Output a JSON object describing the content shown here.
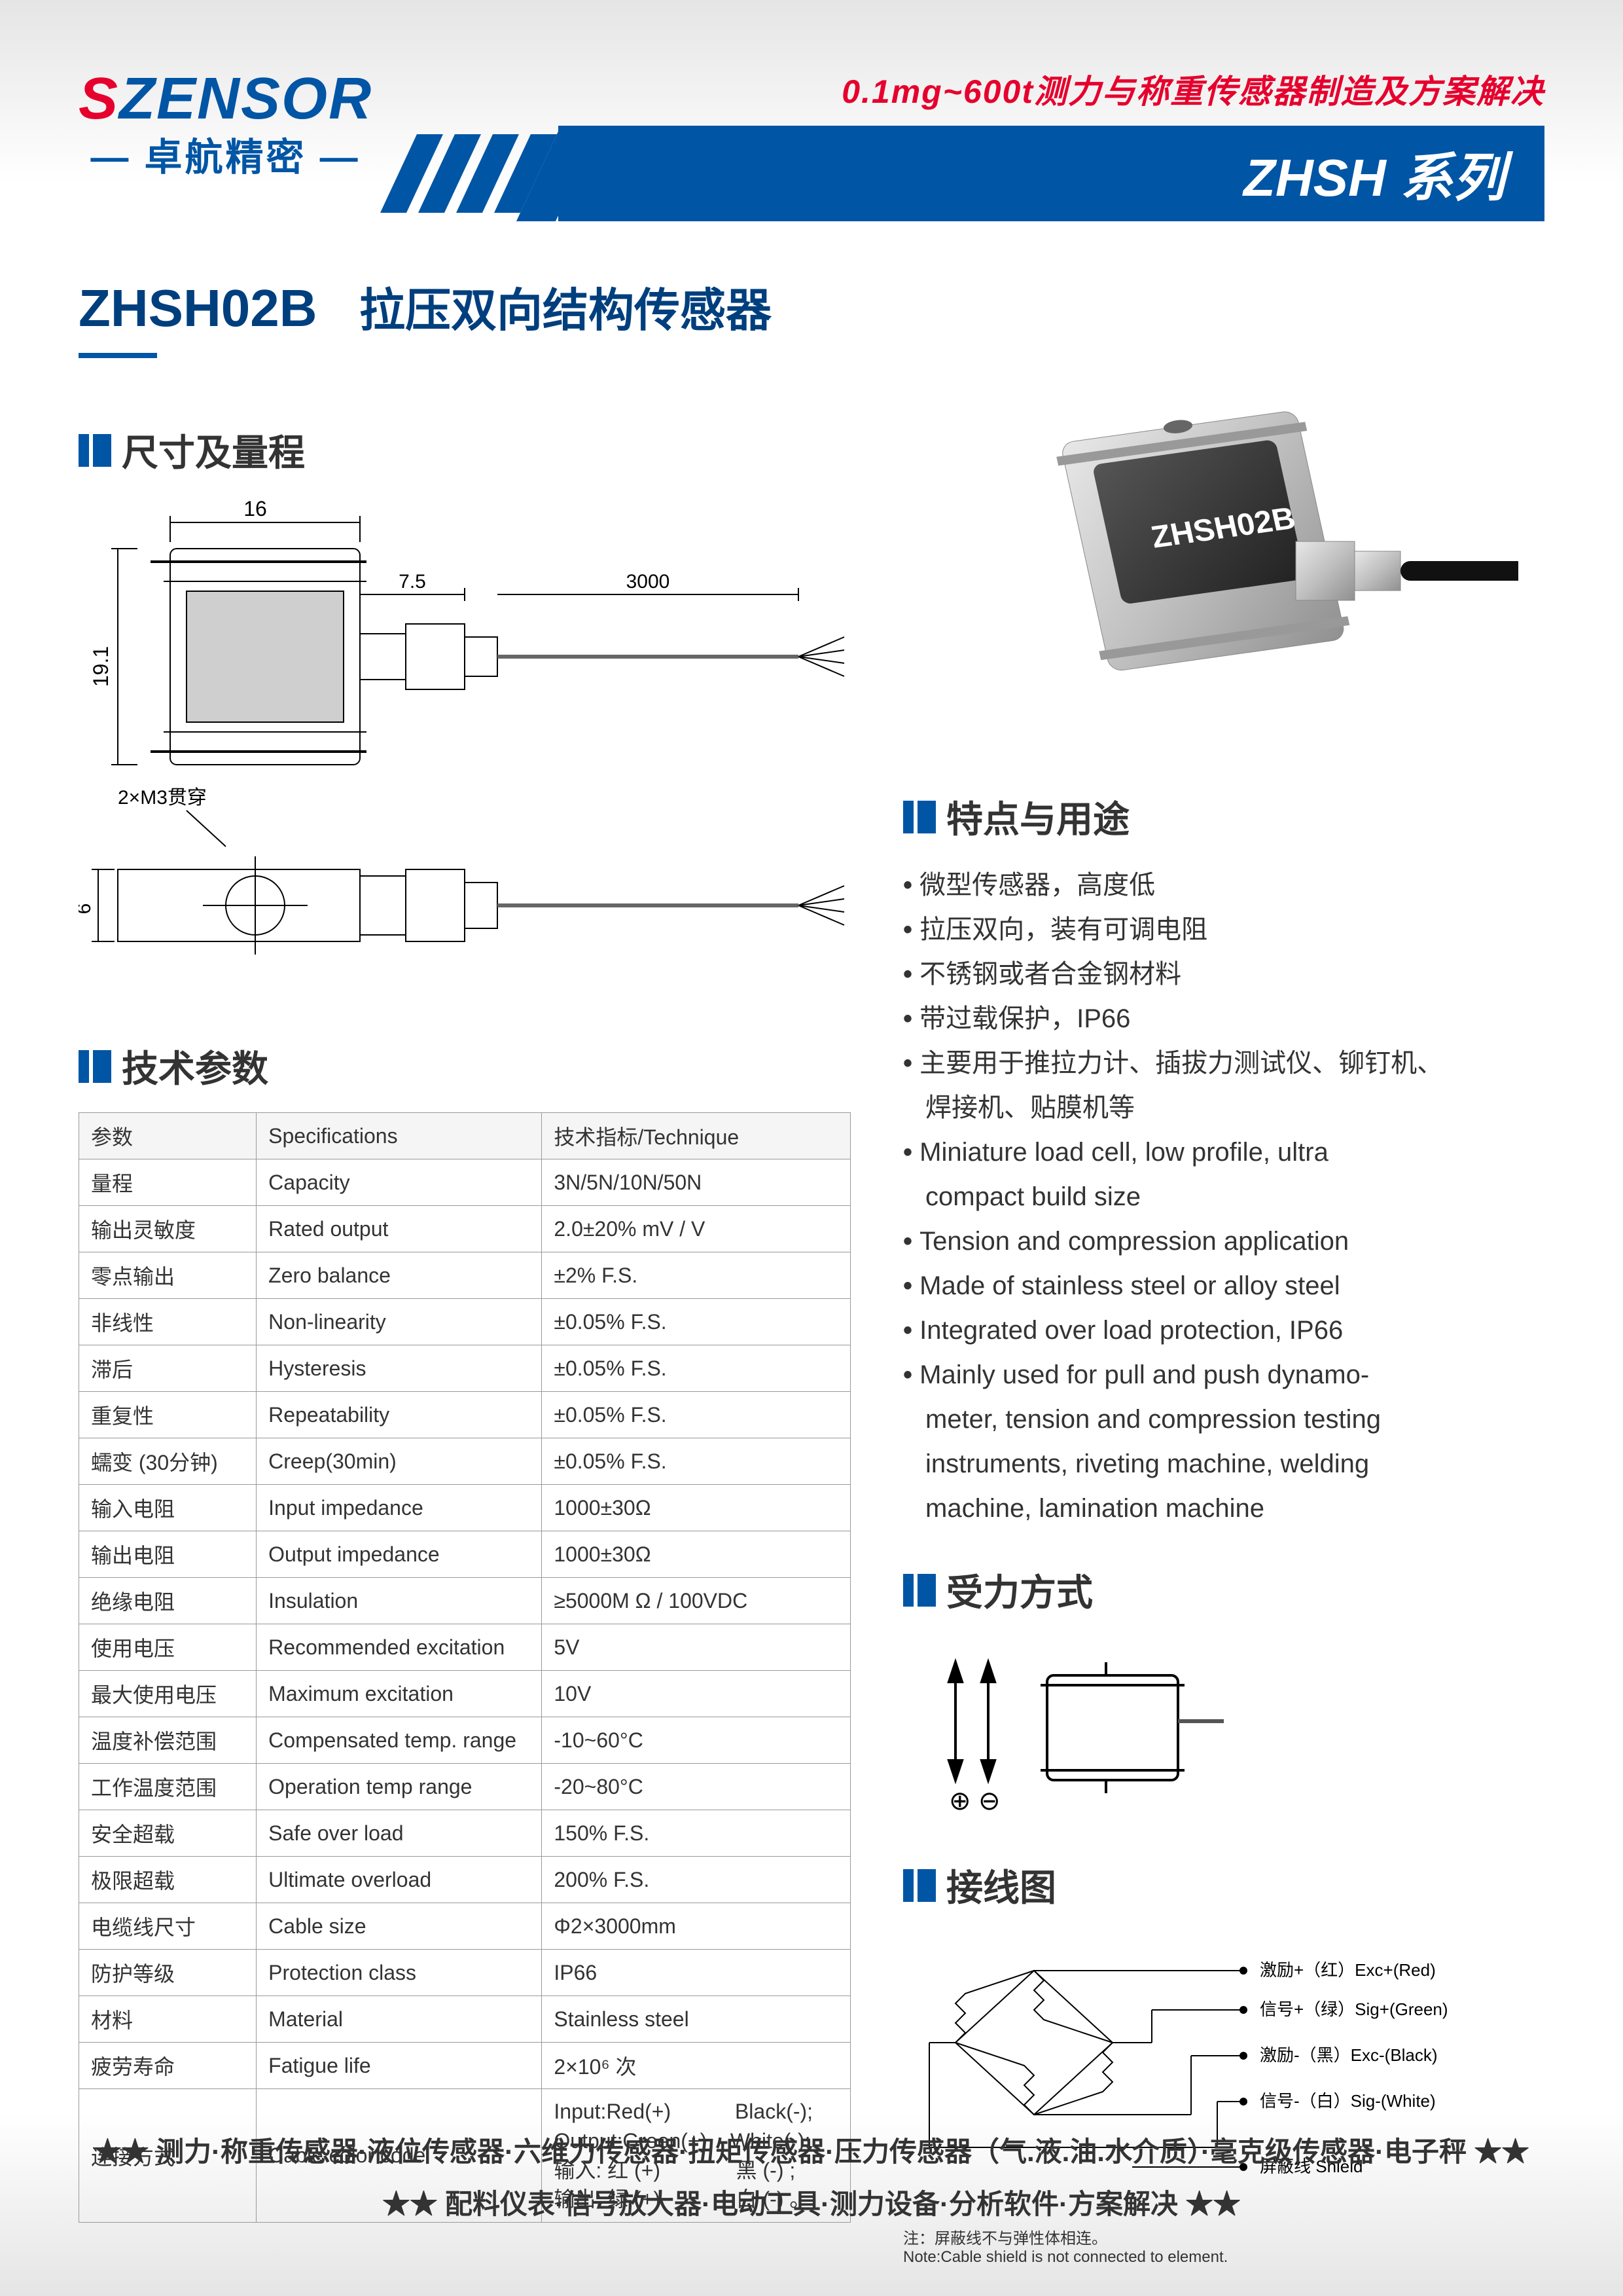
{
  "header": {
    "logo_s": "S",
    "logo_rest": "ZENSOR",
    "logo_sub": "— 卓航精密 —",
    "tagline": "0.1mg~600t测力与称重传感器制造及方案解决",
    "series": "ZHSH 系列"
  },
  "product": {
    "model": "ZHSH02B",
    "name": "拉压双向结构传感器"
  },
  "sections": {
    "dims": "尺寸及量程",
    "specs": "技术参数",
    "features": "特点与用途",
    "force": "受力方式",
    "wiring": "接线图"
  },
  "dims": {
    "w": "16",
    "h": "19.1",
    "ext": "7.5",
    "cable": "3000",
    "hole": "2×M3贯穿",
    "side_h": "6"
  },
  "spec_table": {
    "header": [
      "参数",
      "Specifications",
      "技术指标/Technique"
    ],
    "rows": [
      [
        "量程",
        "Capacity",
        "3N/5N/10N/50N"
      ],
      [
        "输出灵敏度",
        "Rated output",
        "2.0±20%  mV / V"
      ],
      [
        "零点输出",
        "Zero balance",
        "±2% F.S."
      ],
      [
        "非线性",
        "Non-linearity",
        "±0.05% F.S."
      ],
      [
        "滞后",
        "Hysteresis",
        "±0.05% F.S."
      ],
      [
        "重复性",
        "Repeatability",
        "±0.05% F.S."
      ],
      [
        "蠕变 (30分钟)",
        "Creep(30min)",
        "±0.05% F.S."
      ],
      [
        "输入电阻",
        "Input impedance",
        "1000±30Ω"
      ],
      [
        "输出电阻",
        "Output impedance",
        "1000±30Ω"
      ],
      [
        "绝缘电阻",
        "Insulation",
        "≥5000M Ω / 100VDC"
      ],
      [
        "使用电压",
        "Recommended excitation",
        "5V"
      ],
      [
        "最大使用电压",
        "Maximum excitation",
        "10V"
      ],
      [
        "温度补偿范围",
        "Compensated temp. range",
        "-10~60°C"
      ],
      [
        "工作温度范围",
        "Operation temp range",
        "-20~80°C"
      ],
      [
        "安全超载",
        "Safe over load",
        "150% F.S."
      ],
      [
        "极限超载",
        "Ultimate overload",
        "200% F.S."
      ],
      [
        "电缆线尺寸",
        "Cable size",
        "Φ2×3000mm"
      ],
      [
        "防护等级",
        "Protection class",
        "IP66"
      ],
      [
        "材料",
        "Material",
        "Stainless steel"
      ],
      [
        "疲劳寿命",
        "Fatigue life",
        "2×10⁶ 次"
      ]
    ],
    "cable_row": {
      "cn": "连接方式",
      "en": "Cable color code",
      "val": "Input:Red(+)           Black(-);\nOutput:Green(+)    White(-);\n输入: 红 (+)             黑 (-) ;\n输出: 绿 (+)             白 (-) 。"
    }
  },
  "features_list": [
    "微型传感器，高度低",
    "拉压双向，装有可调电阻",
    "不锈钢或者合金钢材料",
    "带过载保护，IP66",
    "主要用于推拉力计、插拔力测试仪、铆钉机、",
    "焊接机、贴膜机等",
    "Miniature load cell, low profile, ultra",
    "compact build size",
    "Tension and compression application",
    "Made of stainless steel or  alloy steel",
    "Integrated over load protection, IP66",
    "Mainly used for pull and push dynamo-",
    "meter, tension and compression testing",
    "instruments, riveting machine, welding",
    "machine, lamination machine"
  ],
  "features_indent": [
    5,
    7,
    12,
    13,
    14
  ],
  "wiring": {
    "labels": [
      "激励+（红）Exc+(Red)",
      "信号+（绿）Sig+(Green)",
      "激励-（黑）Exc-(Black)",
      "信号-（白）Sig-(White)",
      "屏蔽线 Shield"
    ],
    "note": "注：屏蔽线不与弹性体相连。\nNote:Cable shield is not connected to element."
  },
  "photo_label": "ZHSH02B",
  "footer": {
    "l1": "★★ 测力·称重传感器·液位传感器·六维力传感器·扭矩传感器·压力传感器（气.液.油.水介质）·毫克级传感器·电子秤 ★★",
    "l2": "★★ 配料仪表·信号放大器·电动工具·测力设备·分析软件·方案解决 ★★"
  },
  "colors": {
    "blue": "#0055a5",
    "red": "#e6002d",
    "text": "#333333"
  }
}
